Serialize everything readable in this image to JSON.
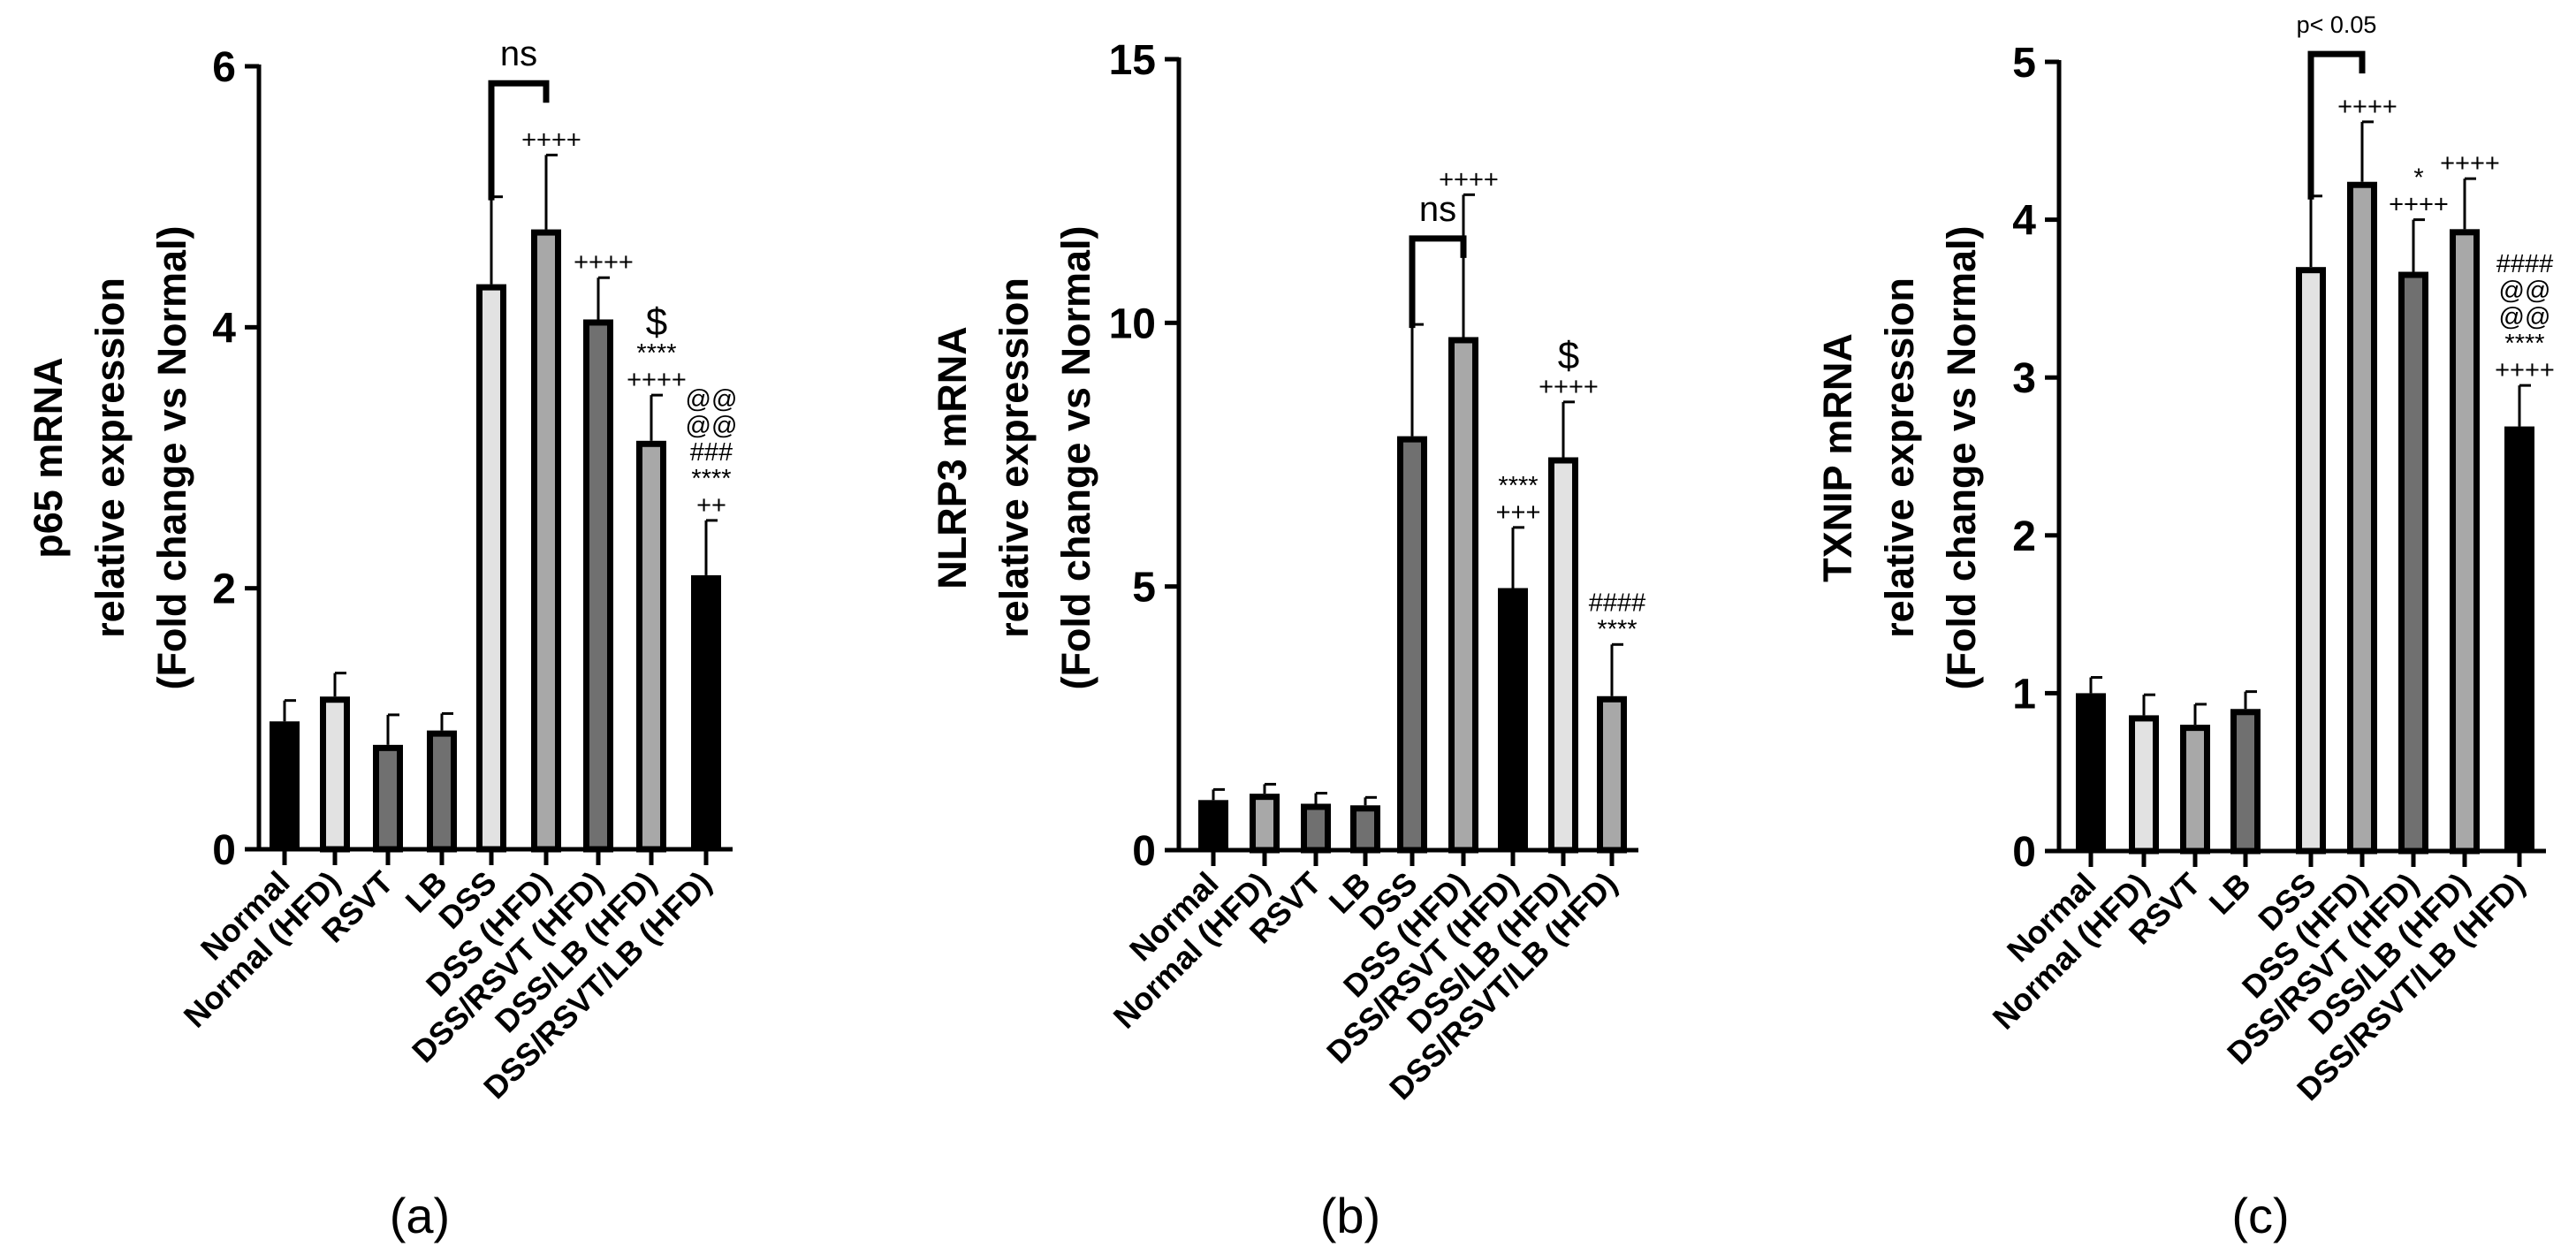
{
  "chart_data": [
    {
      "type": "bar",
      "panel_label": "(a)",
      "ylabel_lines": [
        "p65 mRNA",
        "relative expression",
        "(Fold change vs Normal)"
      ],
      "categories": [
        "Normal",
        "Normal (HFD)",
        "RSVT",
        "LB",
        "DSS",
        "DSS (HFD)",
        "DSS/RSVT (HFD)",
        "DSS/LB (HFD)",
        "DSS/RSVT/LB (HFD)"
      ],
      "values": [
        0.98,
        1.17,
        0.8,
        0.91,
        4.33,
        4.75,
        4.06,
        3.13,
        2.1
      ],
      "errors": [
        0.16,
        0.18,
        0.23,
        0.13,
        0.67,
        0.57,
        0.32,
        0.35,
        0.42
      ],
      "ylim": [
        0,
        6
      ],
      "yticks": [
        0,
        2,
        4,
        6
      ],
      "bracket": {
        "from": 4,
        "to": 5,
        "label": "ns",
        "at": 5.87
      },
      "annotations": [
        {
          "bar": 5,
          "lines": [
            "++++"
          ],
          "big": [
            false
          ]
        },
        {
          "bar": 6,
          "lines": [
            "++++"
          ],
          "big": [
            false
          ]
        },
        {
          "bar": 7,
          "lines": [
            "$",
            "****",
            "++++"
          ],
          "big": [
            true,
            false,
            false
          ]
        },
        {
          "bar": 8,
          "lines": [
            "@@",
            "@@",
            "###",
            "****",
            "++"
          ],
          "big": [
            false,
            false,
            false,
            false,
            false
          ]
        }
      ]
    },
    {
      "type": "bar",
      "panel_label": "(b)",
      "ylabel_lines": [
        "NLRP3 mRNA",
        "relative expression",
        "(Fold change vs Normal)"
      ],
      "categories": [
        "Normal",
        "Normal (HFD)",
        "RSVT",
        "LB",
        "DSS",
        "DSS (HFD)",
        "DSS/RSVT (HFD)",
        "DSS/LB (HFD)",
        "DSS/RSVT/LB (HFD)"
      ],
      "values": [
        0.95,
        1.07,
        0.88,
        0.85,
        7.85,
        9.73,
        4.97,
        7.45,
        2.92
      ],
      "errors": [
        0.2,
        0.18,
        0.2,
        0.15,
        2.12,
        2.7,
        1.15,
        1.05,
        0.98
      ],
      "ylim": [
        0,
        15
      ],
      "yticks": [
        0,
        5,
        10,
        15
      ],
      "bracket": {
        "from": 4,
        "to": 5,
        "label": "ns",
        "at": 11.6
      },
      "annotations": [
        {
          "bar": 5,
          "lines": [
            "++++"
          ],
          "big": [
            false
          ]
        },
        {
          "bar": 6,
          "lines": [
            "****",
            "+++"
          ],
          "big": [
            false,
            false
          ]
        },
        {
          "bar": 7,
          "lines": [
            "$",
            "++++"
          ],
          "big": [
            true,
            false
          ]
        },
        {
          "bar": 8,
          "lines": [
            "####",
            "****"
          ],
          "big": [
            false,
            false
          ]
        }
      ]
    },
    {
      "type": "bar",
      "panel_label": "(c)",
      "ylabel_lines": [
        "TXNIP mRNA",
        "relative expression",
        "(Fold change vs Normal)"
      ],
      "categories": [
        "Normal",
        "Normal (HFD)",
        "RSVT",
        "LB",
        "DSS",
        "DSS (HFD)",
        "DSS/RSVT (HFD)",
        "DSS/LB (HFD)",
        "DSS/RSVT/LB (HFD)"
      ],
      "values": [
        1.0,
        0.86,
        0.8,
        0.9,
        3.7,
        4.24,
        3.67,
        3.94,
        2.69
      ],
      "errors": [
        0.1,
        0.13,
        0.13,
        0.11,
        0.45,
        0.38,
        0.33,
        0.32,
        0.26
      ],
      "ylim": [
        0,
        5
      ],
      "yticks": [
        0,
        1,
        2,
        3,
        4,
        5
      ],
      "bracket": {
        "from": 4,
        "to": 5,
        "label": "p< 0.05",
        "at": 5.05
      },
      "annotations": [
        {
          "bar": 5,
          "lines": [
            "++++"
          ],
          "big": [
            false
          ]
        },
        {
          "bar": 6,
          "lines": [
            "*",
            "++++"
          ],
          "big": [
            false,
            false
          ]
        },
        {
          "bar": 7,
          "lines": [
            "++++"
          ],
          "big": [
            false
          ]
        },
        {
          "bar": 8,
          "lines": [
            "####",
            "@@",
            "@@",
            "****",
            "++++"
          ],
          "big": [
            false,
            false,
            false,
            false,
            false
          ]
        }
      ]
    }
  ],
  "colors": {
    "black": "#000000",
    "light_gray": "#e2e2e2",
    "mid_gray": "#a8a8a8",
    "dark_gray": "#707070"
  }
}
